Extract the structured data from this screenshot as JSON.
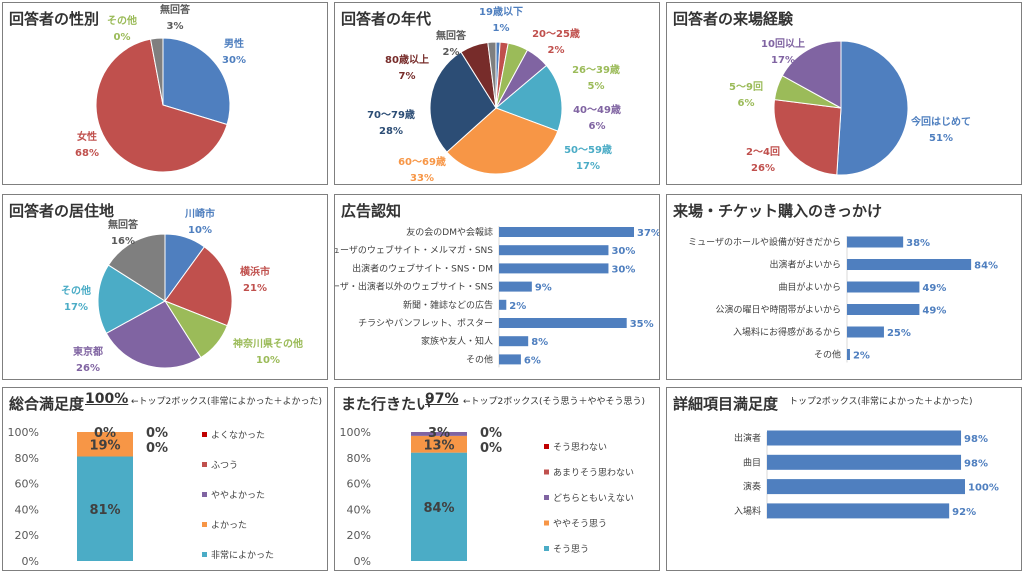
{
  "chart_data": [
    {
      "id": "gender",
      "type": "pie",
      "title": "回答者の性別",
      "slices": [
        {
          "name": "男性",
          "value": 30,
          "label": "30%",
          "color": "#4f7fbf"
        },
        {
          "name": "女性",
          "value": 68,
          "label": "68%",
          "color": "#c0504d"
        },
        {
          "name": "その他",
          "value": 0,
          "label": "0%",
          "color": "#9bbb59"
        },
        {
          "name": "無回答",
          "value": 3,
          "label": "3%",
          "color": "#7f7f7f"
        }
      ]
    },
    {
      "id": "age",
      "type": "pie",
      "title": "回答者の年代",
      "slices": [
        {
          "name": "19歳以下",
          "value": 1,
          "label": "1%",
          "color": "#4f7fbf"
        },
        {
          "name": "20～25歳",
          "value": 2,
          "label": "2%",
          "color": "#c0504d"
        },
        {
          "name": "26～39歳",
          "value": 5,
          "label": "5%",
          "color": "#9bbb59"
        },
        {
          "name": "40～49歳",
          "value": 6,
          "label": "6%",
          "color": "#8064a2"
        },
        {
          "name": "50～59歳",
          "value": 17,
          "label": "17%",
          "color": "#4bacc6"
        },
        {
          "name": "60～69歳",
          "value": 33,
          "label": "33%",
          "color": "#f79646"
        },
        {
          "name": "70～79歳",
          "value": 28,
          "label": "28%",
          "color": "#2c4d75"
        },
        {
          "name": "80歳以上",
          "value": 7,
          "label": "7%",
          "color": "#772c2a"
        },
        {
          "name": "無回答",
          "value": 2,
          "label": "2%",
          "color": "#7f7f7f"
        }
      ]
    },
    {
      "id": "visits",
      "type": "pie",
      "title": "回答者の来場経験",
      "slices": [
        {
          "name": "今回はじめて",
          "value": 51,
          "label": "51%",
          "color": "#4f7fbf"
        },
        {
          "name": "2～4回",
          "value": 26,
          "label": "26%",
          "color": "#c0504d"
        },
        {
          "name": "5～9回",
          "value": 6,
          "label": "6%",
          "color": "#9bbb59"
        },
        {
          "name": "10回以上",
          "value": 17,
          "label": "17%",
          "color": "#8064a2"
        }
      ]
    },
    {
      "id": "residence",
      "type": "pie",
      "title": "回答者の居住地",
      "slices": [
        {
          "name": "川崎市",
          "value": 10,
          "label": "10%",
          "color": "#4f7fbf"
        },
        {
          "name": "横浜市",
          "value": 21,
          "label": "21%",
          "color": "#c0504d"
        },
        {
          "name": "神奈川県その他",
          "value": 10,
          "label": "10%",
          "color": "#9bbb59"
        },
        {
          "name": "東京都",
          "value": 26,
          "label": "26%",
          "color": "#8064a2"
        },
        {
          "name": "その他",
          "value": 17,
          "label": "17%",
          "color": "#4bacc6"
        },
        {
          "name": "無回答",
          "value": 16,
          "label": "16%",
          "color": "#7f7f7f"
        }
      ]
    },
    {
      "id": "ad",
      "type": "bar",
      "orientation": "horizontal",
      "title": "広告認知",
      "categories": [
        "友の会のDMや会報誌",
        "ミューザのウェブサイト・メルマガ・SNS",
        "出演者のウェブサイト・SNS・DM",
        "ミューザ・出演者以外のウェブサイト・SNS",
        "新聞・雑誌などの広告",
        "チラシやパンフレット、ポスター",
        "家族や友人・知人",
        "その他"
      ],
      "values": [
        37,
        30,
        30,
        9,
        2,
        35,
        8,
        6
      ],
      "labels": [
        "37%",
        "30%",
        "30%",
        "9%",
        "2%",
        "35%",
        "8%",
        "6%"
      ],
      "xlim": [
        0,
        37
      ]
    },
    {
      "id": "trigger",
      "type": "bar",
      "orientation": "horizontal",
      "title": "来場・チケット購入のきっかけ",
      "categories": [
        "ミューザのホールや設備が好きだから",
        "出演者がよいから",
        "曲目がよいから",
        "公演の曜日や時間帯がよいから",
        "入場料にお得感があるから",
        "その他"
      ],
      "values": [
        38,
        84,
        49,
        49,
        25,
        2
      ],
      "labels": [
        "38%",
        "84%",
        "49%",
        "49%",
        "25%",
        "2%"
      ],
      "xlim": [
        0,
        90
      ]
    },
    {
      "id": "overall",
      "type": "bar",
      "stacked": true,
      "title": "総合満足度",
      "top2_value": "100%",
      "top2_note": "←トップ2ボックス(非常によかった＋よかった)",
      "yticks": [
        "100%",
        "80%",
        "60%",
        "40%",
        "20%",
        "0%"
      ],
      "ylim": [
        0,
        100
      ],
      "series": [
        {
          "name": "非常によかった",
          "value": 81,
          "label": "81%",
          "color": "#4bacc6"
        },
        {
          "name": "よかった",
          "value": 19,
          "label": "19%",
          "color": "#f79646"
        },
        {
          "name": "ややよかった",
          "value": 0,
          "label": "0%",
          "color": "#8064a2"
        },
        {
          "name": "ふつう",
          "value": 0,
          "label": "0%",
          "color": "#c0504d"
        },
        {
          "name": "よくなかった",
          "value": 0,
          "label": "0%",
          "color": "#c00000"
        }
      ],
      "legend": [
        "よくなかった",
        "ふつう",
        "ややよかった",
        "よかった",
        "非常によかった"
      ]
    },
    {
      "id": "again",
      "type": "bar",
      "stacked": true,
      "title": "また行きたい",
      "top2_value": "97%",
      "top2_note": "←トップ2ボックス(そう思う＋ややそう思う)",
      "yticks": [
        "100%",
        "80%",
        "60%",
        "40%",
        "20%",
        "0%"
      ],
      "ylim": [
        0,
        100
      ],
      "series": [
        {
          "name": "そう思う",
          "value": 84,
          "label": "84%",
          "color": "#4bacc6"
        },
        {
          "name": "ややそう思う",
          "value": 13,
          "label": "13%",
          "color": "#f79646"
        },
        {
          "name": "どちらともいえない",
          "value": 3,
          "label": "3%",
          "color": "#8064a2"
        },
        {
          "name": "あまりそう思わない",
          "value": 0,
          "label": "0%",
          "color": "#c0504d"
        },
        {
          "name": "そう思わない",
          "value": 0,
          "label": "0%",
          "color": "#c00000"
        }
      ],
      "legend": [
        "そう思わない",
        "あまりそう思わない",
        "どちらともいえない",
        "ややそう思う",
        "そう思う"
      ]
    },
    {
      "id": "detail",
      "type": "bar",
      "orientation": "horizontal",
      "title": "詳細項目満足度",
      "top2_note": "トップ2ボックス(非常によかった＋よかった)",
      "categories": [
        "出演者",
        "曲目",
        "演奏",
        "入場料"
      ],
      "values": [
        98,
        98,
        100,
        92
      ],
      "labels": [
        "98%",
        "98%",
        "100%",
        "92%"
      ],
      "xlim": [
        0,
        100
      ]
    }
  ]
}
